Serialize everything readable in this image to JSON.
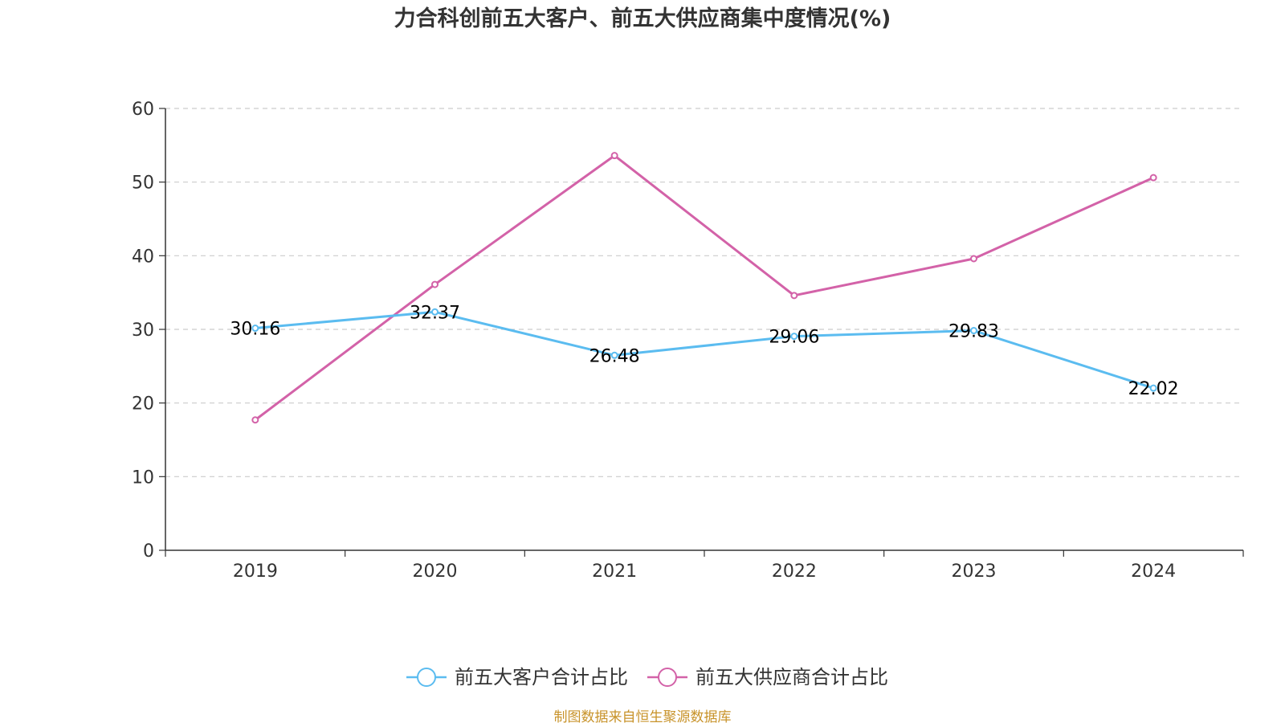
{
  "chart_data": {
    "type": "line",
    "title": "力合科创前五大客户、前五大供应商集中度情况(%)",
    "categories": [
      "2019",
      "2020",
      "2021",
      "2022",
      "2023",
      "2024"
    ],
    "ylim": [
      0,
      60
    ],
    "yticks": [
      0,
      10,
      20,
      30,
      40,
      50,
      60
    ],
    "grid": true,
    "legend_position": "bottom",
    "series": [
      {
        "name": "前五大客户合计占比",
        "color": "#5bbcf0",
        "values": [
          30.16,
          32.37,
          26.48,
          29.06,
          29.83,
          22.02
        ],
        "labels": [
          "30.16",
          "32.37",
          "26.48",
          "29.06",
          "29.83",
          "22.02"
        ],
        "show_labels": true
      },
      {
        "name": "前五大供应商合计占比",
        "color": "#d362a8",
        "values": [
          17.7,
          36.1,
          53.6,
          34.6,
          39.6,
          50.6
        ],
        "show_labels": false
      }
    ],
    "source": "制图数据来自恒生聚源数据库"
  }
}
